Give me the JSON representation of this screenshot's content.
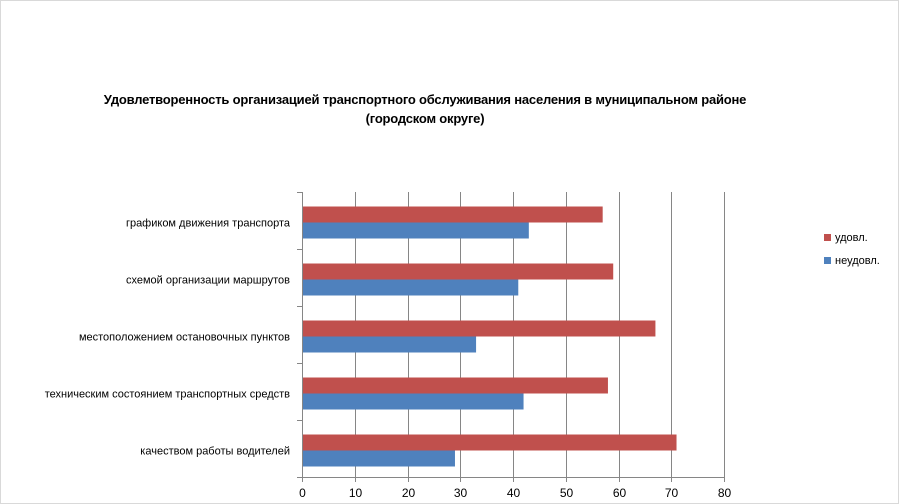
{
  "colors": {
    "udovl": "#c0504d",
    "neudovl": "#4f81bd",
    "axis": "#868686",
    "grid": "#868686"
  },
  "chart_data": {
    "type": "bar",
    "orientation": "horizontal",
    "title": "Удовлетворенность организацией транспортного обслуживания населения в муниципальном районе (городском округе)",
    "title_lines": [
      "Удовлетворенность организацией транспортного обслуживания населения в муниципальном районе",
      "(городском округе)"
    ],
    "categories": [
      "графиком движения  транспорта",
      "схемой организации маршрутов",
      "местоположением  остановочных пунктов",
      "техническим  состоянием транспортных средств",
      "качеством  работы водителей"
    ],
    "series": [
      {
        "name": "удовл.",
        "color": "#c0504d",
        "values": [
          57,
          59,
          67,
          58,
          71
        ]
      },
      {
        "name": "неудовл.",
        "color": "#4f81bd",
        "values": [
          43,
          41,
          33,
          42,
          29
        ]
      }
    ],
    "xlim": [
      0,
      80
    ],
    "xticks": [
      0,
      10,
      20,
      30,
      40,
      50,
      60,
      70,
      80
    ],
    "grid": true,
    "legend": "right"
  }
}
